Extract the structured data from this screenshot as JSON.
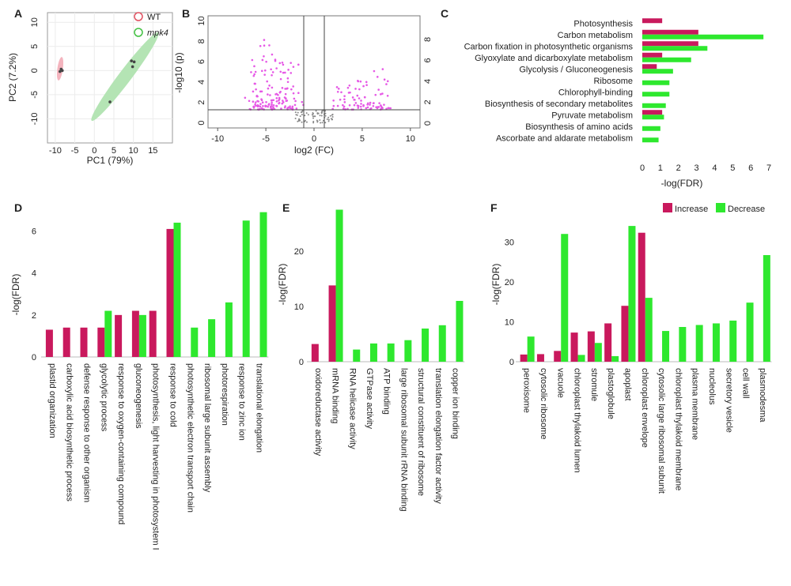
{
  "colors": {
    "increase": "#c9195d",
    "decrease": "#2ee82e",
    "wt_fill": "#f4b4be",
    "mpk4_fill": "#b4e4b4",
    "volcano_point": "#e659e6",
    "gray_point": "#888888"
  },
  "chart_data": [
    {
      "panel": "A",
      "type": "scatter",
      "xlabel": "PC1 (79%)",
      "ylabel": "PC2 (7.2%)",
      "xlim": [
        -12,
        20
      ],
      "ylim": [
        -15,
        12
      ],
      "xticks": [
        "-10",
        "-5",
        "0",
        "5",
        "10",
        "15"
      ],
      "xtick_vals": [
        -10,
        -5,
        0,
        5,
        10,
        15
      ],
      "yticks": [
        "10",
        "5",
        "0",
        "-5",
        "-10"
      ],
      "ytick_vals": [
        10,
        5,
        0,
        -5,
        -10
      ],
      "legend": [
        "WT",
        "mpk4"
      ],
      "series": [
        {
          "name": "WT",
          "points": [
            [
              -8.5,
              0.3
            ],
            [
              -8.8,
              -0.2
            ],
            [
              -8.2,
              0.0
            ]
          ]
        },
        {
          "name": "mpk4",
          "points": [
            [
              9.5,
              2.0
            ],
            [
              10.2,
              1.8
            ],
            [
              4.0,
              -6.5
            ],
            [
              9.8,
              0.8
            ]
          ]
        }
      ]
    },
    {
      "panel": "B",
      "type": "scatter",
      "xlabel": "log2 (FC)",
      "ylabel": "-log10 (p)",
      "xlim": [
        -11,
        11
      ],
      "ylim": [
        -0.5,
        10.5
      ],
      "xticks": [
        "-10",
        "-5",
        "0",
        "5",
        "10"
      ],
      "xtick_vals": [
        -10,
        -5,
        0,
        5,
        10
      ],
      "yticks": [
        "10",
        "8",
        "6",
        "4",
        "2",
        "0"
      ],
      "ytick_vals": [
        10,
        8,
        6,
        4,
        2,
        0
      ],
      "y2ticks": [
        "8",
        "6",
        "4",
        "2",
        "0"
      ],
      "y2tick_vals": [
        8,
        6,
        4,
        2,
        0
      ]
    },
    {
      "panel": "C",
      "type": "bar",
      "xlabel": "-log(FDR)",
      "xlim": [
        0,
        7
      ],
      "xticks": [
        "0",
        "1",
        "2",
        "3",
        "4",
        "5",
        "6",
        "7"
      ],
      "categories": [
        "Photosynthesis",
        "Carbon metabolism",
        "Carbon fixation in photosynthetic organisms",
        "Glyoxylate and dicarboxylate metabolism",
        "Glycolysis / Gluconeogenesis",
        "Ribosome",
        "Chlorophyll-binding",
        "Biosynthesis of secondary metabolites",
        "Pyruvate metabolism",
        "Biosynthesis of amino acids",
        "Ascorbate and aldarate metabolism"
      ],
      "series": [
        {
          "name": "Increase",
          "values": [
            1.1,
            3.1,
            3.1,
            1.1,
            0.8,
            0,
            0,
            0,
            1.1,
            0,
            0
          ]
        },
        {
          "name": "Decrease",
          "values": [
            0,
            6.7,
            3.6,
            2.7,
            1.7,
            1.5,
            1.5,
            1.3,
            1.2,
            1.0,
            0.9
          ]
        }
      ]
    },
    {
      "panel": "D",
      "type": "bar",
      "ylabel": "-log(FDR)",
      "ylim": [
        0,
        7
      ],
      "yticks": [
        "0",
        "2",
        "4",
        "6"
      ],
      "ytick_vals": [
        0,
        2,
        4,
        6
      ],
      "categories": [
        "plastid organization",
        "carboxylic acid biosynthetic process",
        "defense response to other organism",
        "glycolytic process",
        "response to oxygen-containing compound",
        "gluconeogenesis",
        "photosynthesis, light harvesting in photosystem I",
        "response to cold",
        "photosynthetic electron transport chain",
        "ribosomal large subunit assembly",
        "photorespiration",
        "response to zinc ion",
        "translational elongation"
      ],
      "series": [
        {
          "name": "Increase",
          "values": [
            1.3,
            1.4,
            1.4,
            1.4,
            2.0,
            2.2,
            2.2,
            6.1,
            0,
            0,
            0,
            0,
            0
          ]
        },
        {
          "name": "Decrease",
          "values": [
            0,
            0,
            0,
            2.2,
            0,
            2.0,
            0,
            6.4,
            1.4,
            1.8,
            2.6,
            6.5,
            6.9
          ]
        }
      ]
    },
    {
      "panel": "E",
      "type": "bar",
      "ylabel": "-log(FDR)",
      "ylim": [
        0,
        29
      ],
      "yticks": [
        "0",
        "10",
        "20"
      ],
      "ytick_vals": [
        0,
        10,
        20
      ],
      "categories": [
        "oxidoreductase activity",
        "mRNA binding",
        "RNA helicase activity",
        "GTPase activity",
        "ATP binding",
        "large ribosomal subunit rRNA binding",
        "structural constituent of ribosome",
        "translation elongation factor activity",
        "copper ion binding"
      ],
      "series": [
        {
          "name": "Increase",
          "values": [
            3.2,
            13.8,
            0,
            0,
            0,
            0,
            0,
            0,
            0
          ]
        },
        {
          "name": "Decrease",
          "values": [
            0,
            27.5,
            2.2,
            3.3,
            3.3,
            3.9,
            6.0,
            6.6,
            11.0
          ]
        }
      ]
    },
    {
      "panel": "F",
      "type": "bar",
      "ylabel": "-log(FDR)",
      "ylim": [
        0,
        36
      ],
      "yticks": [
        "0",
        "10",
        "20",
        "30"
      ],
      "ytick_vals": [
        0,
        10,
        20,
        30
      ],
      "legend": [
        "Increase",
        "Decrease"
      ],
      "categories": [
        "peroxisome",
        "cytosolic ribosome",
        "vacuole",
        "chloroplast thylakoid lumen",
        "stromule",
        "plastoglobule",
        "apoplast",
        "chloroplast envelope",
        "cytosolic large ribosomal subunit",
        "chloroplast thylakoid membrane",
        "plasma membrane",
        "nucleolus",
        "secretory vesicle",
        "cell wall",
        "plasmodesma"
      ],
      "series": [
        {
          "name": "Increase",
          "values": [
            1.8,
            1.9,
            2.7,
            7.3,
            7.6,
            9.6,
            14.0,
            32.3,
            0,
            0,
            0,
            0,
            0,
            0,
            0
          ]
        },
        {
          "name": "Decrease",
          "values": [
            6.3,
            0,
            32.0,
            1.7,
            4.7,
            1.4,
            34.0,
            16.0,
            7.7,
            8.7,
            9.2,
            9.6,
            10.3,
            14.8,
            26.7
          ]
        }
      ]
    }
  ]
}
